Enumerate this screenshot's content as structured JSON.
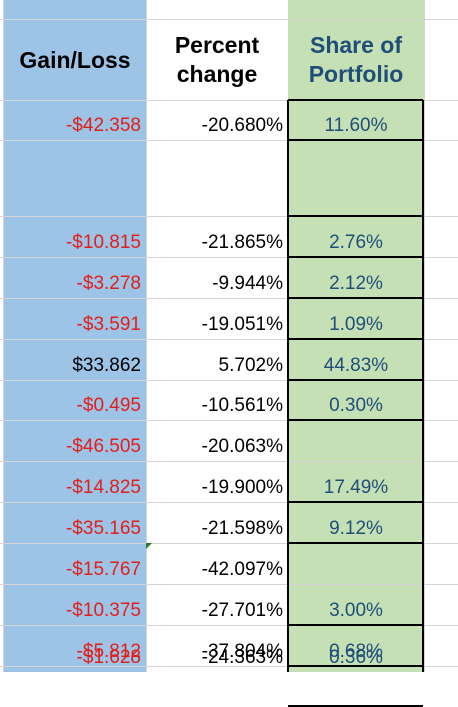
{
  "headers": {
    "gain_loss": "Gain/Loss",
    "percent_line1": "Percent",
    "percent_line2": "change",
    "share_line1": "Share of",
    "share_line2": "Portfolio"
  },
  "colors": {
    "gain_bg": "#9dc3e6",
    "share_bg": "#c5e0b4",
    "negative": "#e0201a",
    "share_text": "#1f4e79",
    "grid": "#d4d4d4"
  },
  "rows": [
    {
      "gain": "-$42.358",
      "negative": true,
      "pct": "-20.680%",
      "share": "11.60%"
    },
    {
      "gain": "",
      "negative": false,
      "pct": "",
      "share": ""
    },
    {
      "gain": "-$10.815",
      "negative": true,
      "pct": "-21.865%",
      "share": "2.76%"
    },
    {
      "gain": "-$3.278",
      "negative": true,
      "pct": "-9.944%",
      "share": "2.12%"
    },
    {
      "gain": "-$3.591",
      "negative": true,
      "pct": "-19.051%",
      "share": "1.09%"
    },
    {
      "gain": "$33.862",
      "negative": false,
      "pct": "5.702%",
      "share": "44.83%"
    },
    {
      "gain": "-$0.495",
      "negative": true,
      "pct": "-10.561%",
      "share": "0.30%"
    },
    {
      "gain": "-$46.505",
      "negative": true,
      "pct": "-20.063%",
      "share": ""
    },
    {
      "gain": "-$14.825",
      "negative": true,
      "pct": "-19.900%",
      "share": "17.49%"
    },
    {
      "gain": "-$35.165",
      "negative": true,
      "pct": "-21.598%",
      "share": "9.12%"
    },
    {
      "gain": "-$15.767",
      "negative": true,
      "pct": "-42.097%",
      "share": ""
    },
    {
      "gain": "-$10.375",
      "negative": true,
      "pct": "-27.701%",
      "share": "3.00%"
    },
    {
      "gain": "-$5.812",
      "negative": true,
      "pct": "-37.804%",
      "share": "0.68%"
    },
    {
      "gain": "-$1.628",
      "negative": true,
      "pct": "-24.363%",
      "share": "0.36%"
    }
  ]
}
